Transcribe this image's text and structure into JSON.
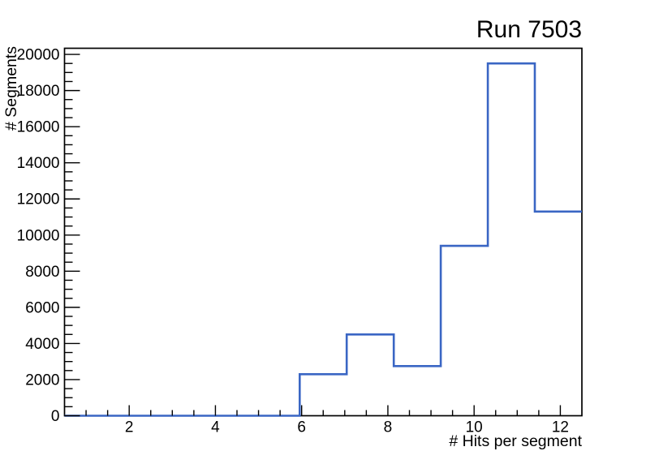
{
  "page": {
    "background": "#ffffff",
    "axis_color": "#000000",
    "text_color": "#000000"
  },
  "chart_data": {
    "type": "histogram",
    "title": "Run 7503",
    "xlabel": "# Hits per segment",
    "ylabel": "# Segments",
    "xlim": [
      0.5,
      12.5
    ],
    "ylim": [
      0,
      20340
    ],
    "grid": false,
    "legend": "none",
    "line_color": "#3A66C4",
    "bin_edges": [
      0.5,
      1.591,
      2.682,
      3.773,
      4.864,
      5.955,
      7.045,
      8.136,
      9.227,
      10.318,
      11.409,
      12.5
    ],
    "counts": [
      0,
      0,
      0,
      0,
      0,
      2300,
      4500,
      2750,
      9400,
      19500,
      11300
    ],
    "x_ticks": [
      {
        "value": 2,
        "label": "2"
      },
      {
        "value": 4,
        "label": "4"
      },
      {
        "value": 6,
        "label": "6"
      },
      {
        "value": 8,
        "label": "8"
      },
      {
        "value": 10,
        "label": "10"
      },
      {
        "value": 12,
        "label": "12"
      }
    ],
    "x_minor_step": 0.5,
    "y_ticks": [
      {
        "value": 0,
        "label": "0"
      },
      {
        "value": 2000,
        "label": "2000"
      },
      {
        "value": 4000,
        "label": "4000"
      },
      {
        "value": 6000,
        "label": "6000"
      },
      {
        "value": 8000,
        "label": "8000"
      },
      {
        "value": 10000,
        "label": "10000"
      },
      {
        "value": 12000,
        "label": "12000"
      },
      {
        "value": 14000,
        "label": "14000"
      },
      {
        "value": 16000,
        "label": "16000"
      },
      {
        "value": 18000,
        "label": "18000"
      },
      {
        "value": 20000,
        "label": "20000"
      }
    ],
    "y_minor_step": 500
  }
}
